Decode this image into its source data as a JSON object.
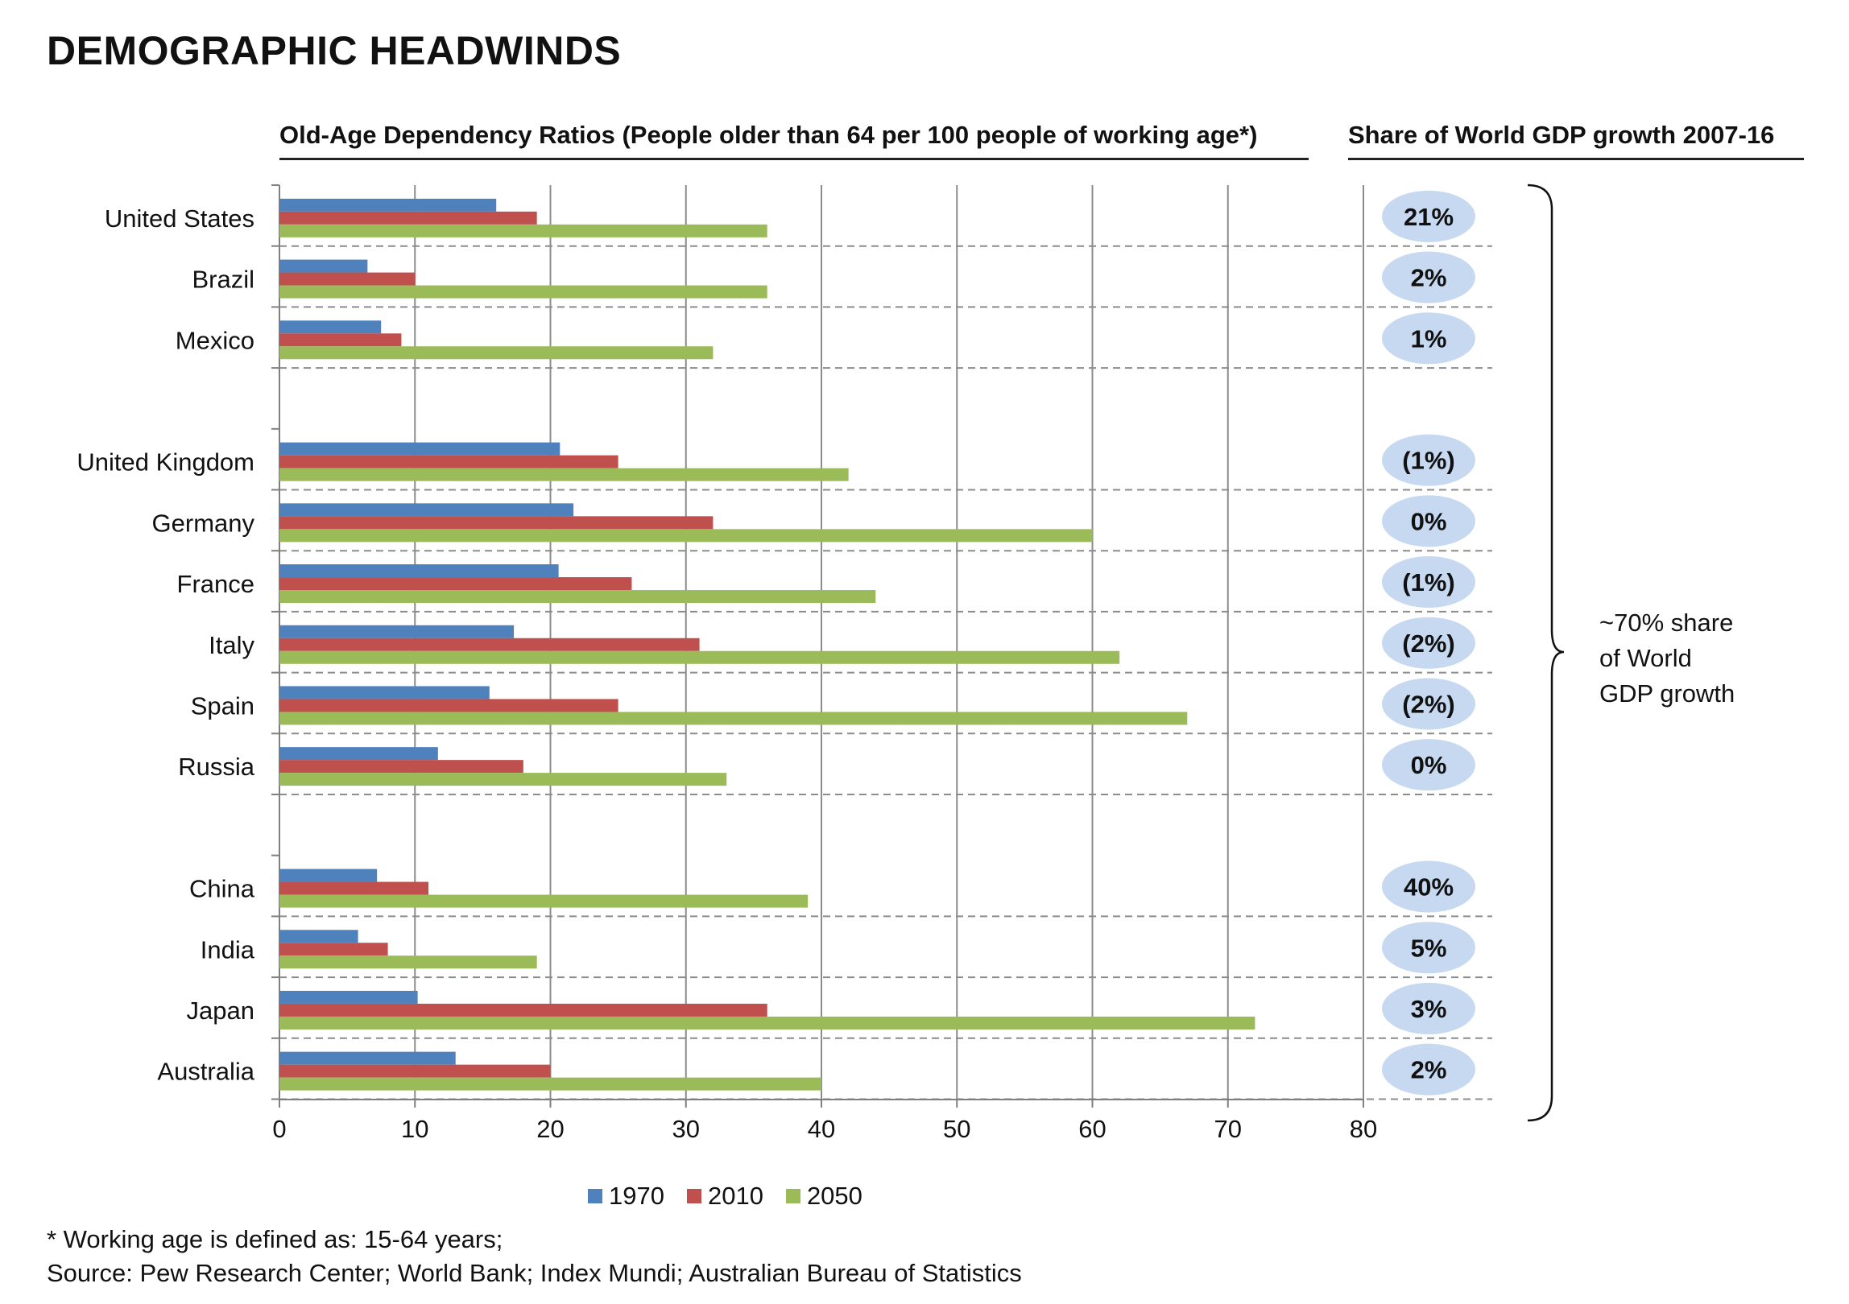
{
  "title": "DEMOGRAPHIC HEADWINDS",
  "chart_header": "Old-Age Dependency Ratios (People older than 64 per 100 people of working age*)",
  "gdp_header": "Share of World GDP growth 2007-16",
  "bracket_label": [
    "~70% share",
    "of World",
    "GDP growth"
  ],
  "footnotes": {
    "line1": "* Working age is defined as: 15-64 years;",
    "line2": "Source: Pew Research Center; World Bank; Index Mundi; Australian Bureau of Statistics"
  },
  "colors": {
    "1970": "#4f81bd",
    "2010": "#c0504d",
    "2050": "#9bbb59",
    "bubble": "#c6d9f1"
  },
  "chart_data": {
    "type": "bar",
    "orientation": "horizontal",
    "xlim": [
      0,
      80
    ],
    "xticks": [
      0,
      10,
      20,
      30,
      40,
      50,
      60,
      70,
      80
    ],
    "legend_position": "bottom",
    "grid": "vertical",
    "groups": [
      [
        "United States",
        "Brazil",
        "Mexico"
      ],
      [
        "United Kingdom",
        "Germany",
        "France",
        "Italy",
        "Spain",
        "Russia"
      ],
      [
        "China",
        "India",
        "Japan",
        "Australia"
      ]
    ],
    "categories": [
      "United States",
      "Brazil",
      "Mexico",
      "United Kingdom",
      "Germany",
      "France",
      "Italy",
      "Spain",
      "Russia",
      "China",
      "India",
      "Japan",
      "Australia"
    ],
    "series": [
      {
        "name": "1970",
        "values": [
          16,
          6.5,
          7.5,
          20.7,
          21.7,
          20.6,
          17.3,
          15.5,
          11.7,
          7.2,
          5.8,
          10.2,
          13
        ]
      },
      {
        "name": "2010",
        "values": [
          19,
          10,
          9,
          25,
          32,
          26,
          31,
          25,
          18,
          11,
          8,
          36,
          20
        ]
      },
      {
        "name": "2050",
        "values": [
          36,
          36,
          32,
          42,
          60,
          44,
          62,
          67,
          33,
          39,
          19,
          72,
          40
        ]
      }
    ],
    "gdp_share_labels": [
      "21%",
      "2%",
      "1%",
      "(1%)",
      "0%",
      "(1%)",
      "(2%)",
      "(2%)",
      "0%",
      "40%",
      "5%",
      "3%",
      "2%"
    ]
  }
}
